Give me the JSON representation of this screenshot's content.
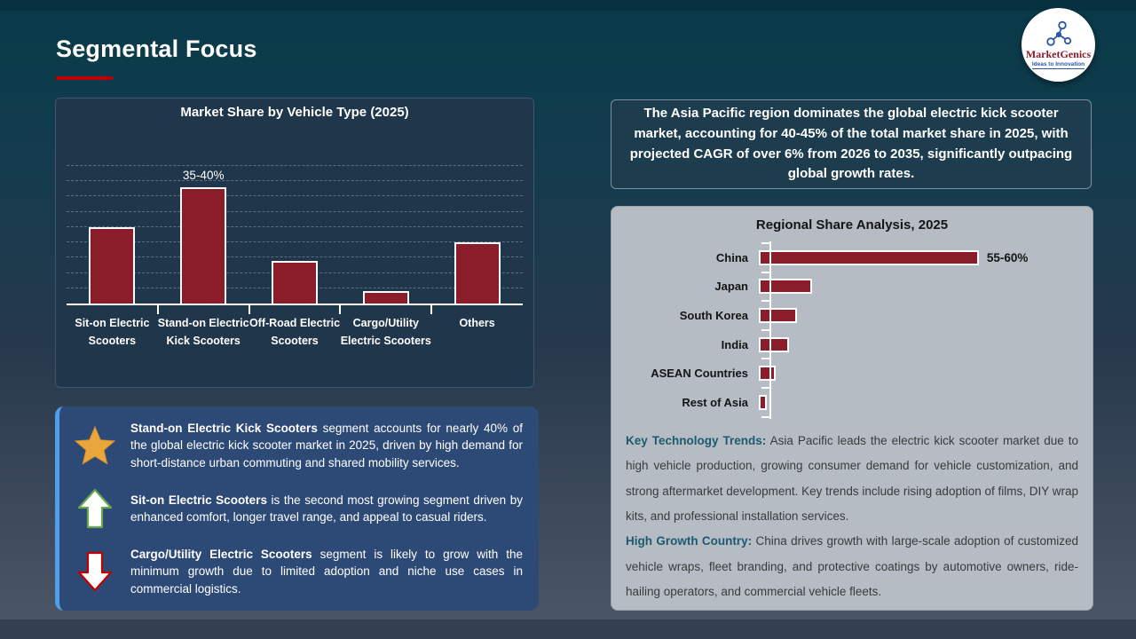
{
  "page": {
    "title": "Segmental Focus"
  },
  "logo": {
    "name": "MarketGenics",
    "tagline": "Ideas to Innovation"
  },
  "insights": [
    {
      "icon": "star-icon",
      "bold": "Stand-on Electric Kick Scooters",
      "rest": "segment accounts for nearly 40% of the global electric kick scooter market in 2025, driven by high demand for short-distance urban commuting and shared mobility services."
    },
    {
      "icon": "up-arrow-icon",
      "bold": "Sit-on Electric Scooters",
      "rest": "is the second most growing segment driven by enhanced comfort, longer travel range, and appeal to casual riders."
    },
    {
      "icon": "down-arrow-icon",
      "bold": "Cargo/Utility Electric Scooters",
      "rest": "segment is likely to grow with the minimum growth due to limited adoption and niche use cases in commercial logistics."
    }
  ],
  "right": {
    "highlight": "The Asia Pacific region dominates the global electric kick scooter market, accounting for 40-45% of the total market share in 2025, with projected CAGR of over 6% from 2026 to 2035, significantly outpacing global growth rates.",
    "paragraphs": [
      {
        "lead": "Key Technology Trends:",
        "rest": "Asia Pacific leads the electric kick scooter market due to high vehicle production, growing consumer demand for vehicle customization, and strong aftermarket development. Key trends include rising adoption of films, DIY wrap kits, and professional installation services."
      },
      {
        "lead": "High Growth Country:",
        "rest": "China drives growth with large-scale adoption of customized vehicle wraps, fleet branding, and protective coatings by automotive owners, ride-hailing operators, and commercial vehicle fleets."
      }
    ]
  },
  "chart_data": [
    {
      "type": "bar",
      "orientation": "vertical",
      "title": "Market Share by Vehicle Type (2025)",
      "categories": [
        "Sit-on Electric Scooters",
        "Stand-on Electric Kick Scooters",
        "Off-Road Electric Scooters",
        "Cargo/Utility Electric Scooters",
        "Others"
      ],
      "values": [
        25,
        38,
        14,
        4,
        20
      ],
      "data_labels": [
        "",
        "35-40%",
        "",
        "",
        ""
      ],
      "unit": "%",
      "ylim": [
        0,
        60
      ],
      "gridlines": {
        "style": "dashed",
        "interval": 5,
        "max": 45
      },
      "legend": "none",
      "bar_color": "#8B1D2B"
    },
    {
      "type": "bar",
      "orientation": "horizontal",
      "title": "Regional Share Analysis, 2025",
      "categories": [
        "China",
        "Japan",
        "South Korea",
        "India",
        "ASEAN Countries",
        "Rest of Asia"
      ],
      "values": [
        57.5,
        14,
        10,
        8,
        4.5,
        2
      ],
      "data_labels": [
        "55-60%",
        "",
        "",
        "",
        "",
        ""
      ],
      "unit": "%",
      "xlim": [
        0,
        65
      ],
      "grid": "off",
      "legend": "none",
      "bar_color": "#8B1D2B"
    }
  ],
  "colors": {
    "accent_red": "#C00000",
    "bar_fill": "#8B1D2B",
    "dark_chart_panel": "#20364A",
    "insight_box_blue": "#2D4A77",
    "insight_accent_blue": "#4F9FE8",
    "gray_panel": "#B6BCC4",
    "teal_lead_text": "#1D5A6E",
    "star_gold": "#E9A63B",
    "up_arrow_green": "#6AA84F",
    "down_arrow_red": "#C00000"
  }
}
